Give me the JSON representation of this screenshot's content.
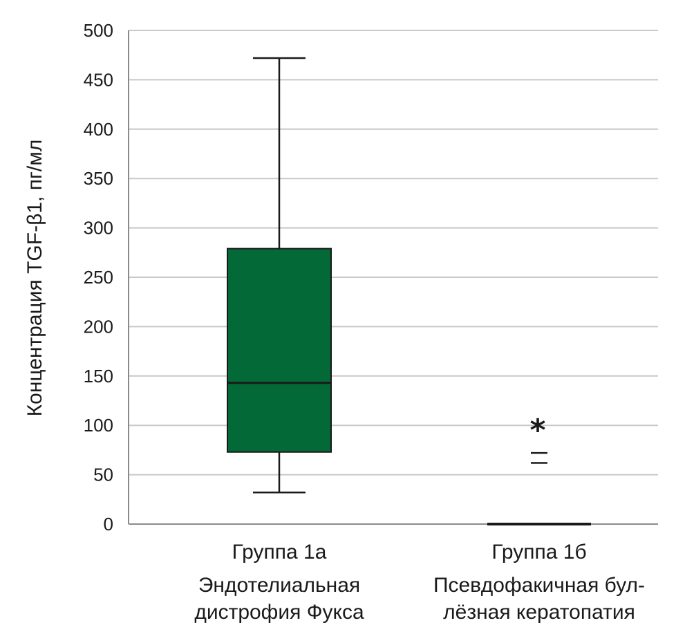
{
  "chart_data": {
    "type": "boxplot",
    "ylabel": "Концентрация TGF-β1, пг/мл",
    "ylim": [
      0,
      500
    ],
    "yticks": [
      0,
      50,
      100,
      150,
      200,
      250,
      300,
      350,
      400,
      450,
      500
    ],
    "grid": true,
    "colors": {
      "box": "#036936",
      "line": "#1a1a1a",
      "grid": "#c8c8c8"
    },
    "groups": [
      {
        "label_lines": [
          "Группа 1а",
          "Эндотелиальная",
          "дистрофия Фукса"
        ],
        "whisker_low": 32,
        "q1": 73,
        "median": 143,
        "q3": 279,
        "whisker_high": 472,
        "outliers": [],
        "extremes": []
      },
      {
        "label_lines": [
          "Группа 1б",
          "Псевдофакичная бул-",
          "лёзная кератопатия"
        ],
        "whisker_low": 0,
        "q1": 0,
        "median": 0,
        "q3": 0,
        "whisker_high": 0,
        "outliers": [
          62,
          72
        ],
        "extremes": [
          100
        ],
        "extreme_symbol": "*"
      }
    ]
  }
}
